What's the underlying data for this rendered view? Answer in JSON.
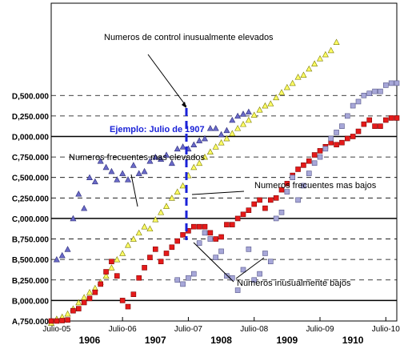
{
  "chart_data": {
    "type": "scatter",
    "x_unit": "months since Julio-05",
    "xlim": [
      -1,
      62
    ],
    "ylim": [
      0,
      15.5
    ],
    "y_ticks": [
      {
        "v": 0,
        "label": "A,750.000"
      },
      {
        "v": 1,
        "label": "B,000.000"
      },
      {
        "v": 2,
        "label": "B,250.000"
      },
      {
        "v": 3,
        "label": "B,500.000"
      },
      {
        "v": 4,
        "label": "B,750.000"
      },
      {
        "v": 5,
        "label": "C,000.000"
      },
      {
        "v": 6,
        "label": "C,250.000"
      },
      {
        "v": 7,
        "label": "C,500.000"
      },
      {
        "v": 8,
        "label": "C,750.000"
      },
      {
        "v": 9,
        "label": "D,000.000"
      },
      {
        "v": 10,
        "label": "D,250.000"
      },
      {
        "v": 11,
        "label": "D,500.000"
      }
    ],
    "solid_grid": [
      1,
      5,
      9
    ],
    "x_ticks": [
      {
        "v": 0,
        "label": "Julio-05"
      },
      {
        "v": 12,
        "label": "Julio-06"
      },
      {
        "v": 24,
        "label": "Julio-07"
      },
      {
        "v": 36,
        "label": "Julio-08"
      },
      {
        "v": 48,
        "label": "Julio-09"
      },
      {
        "v": 60,
        "label": "Julio-10"
      }
    ],
    "year_labels": [
      {
        "v": 6,
        "label": "1906"
      },
      {
        "v": 18,
        "label": "1907"
      },
      {
        "v": 30,
        "label": "1908"
      },
      {
        "v": 42,
        "label": "1909"
      },
      {
        "v": 54,
        "label": "1910"
      }
    ],
    "series": [
      {
        "marker": "triangle",
        "color": "#ffff66",
        "stroke": "#7a7a00",
        "points": [
          [
            -1,
            -0.1
          ],
          [
            0,
            0.1
          ],
          [
            1,
            0.2
          ],
          [
            2,
            0.35
          ],
          [
            3,
            0.6
          ],
          [
            4,
            0.9
          ],
          [
            5,
            1.15
          ],
          [
            6,
            1.4
          ],
          [
            7,
            1.6
          ],
          [
            8,
            1.9
          ],
          [
            9,
            2.2
          ],
          [
            10,
            2.6
          ],
          [
            11,
            3.0
          ],
          [
            12,
            3.3
          ],
          [
            13,
            3.7
          ],
          [
            14,
            4.0
          ],
          [
            15,
            4.3
          ],
          [
            16,
            4.6
          ],
          [
            17,
            4.5
          ],
          [
            18,
            4.95
          ],
          [
            19,
            5.3
          ],
          [
            20,
            5.6
          ],
          [
            21,
            6.0
          ],
          [
            22,
            6.3
          ],
          [
            23,
            6.6
          ],
          [
            24,
            7.1
          ],
          [
            25,
            7.5
          ],
          [
            26,
            7.7
          ],
          [
            27,
            8.0
          ],
          [
            28,
            8.25
          ],
          [
            29,
            8.5
          ],
          [
            30,
            8.7
          ],
          [
            31,
            8.9
          ],
          [
            32,
            9.15
          ],
          [
            33,
            9.4
          ],
          [
            34,
            9.6
          ],
          [
            35,
            9.8
          ],
          [
            36,
            10.05
          ],
          [
            37,
            10.3
          ],
          [
            38,
            10.5
          ],
          [
            39,
            10.6
          ],
          [
            40,
            10.9
          ],
          [
            41,
            11.15
          ],
          [
            42,
            11.4
          ],
          [
            43,
            11.6
          ],
          [
            44,
            11.9
          ],
          [
            45,
            12.0
          ],
          [
            46,
            12.3
          ],
          [
            47,
            12.55
          ],
          [
            48,
            12.8
          ],
          [
            49,
            13.0
          ],
          [
            50,
            13.2
          ],
          [
            51,
            13.6
          ]
        ]
      },
      {
        "marker": "square",
        "color": "#e51a1a",
        "stroke": "#800000",
        "points": [
          [
            -1,
            0.0
          ],
          [
            0,
            0.0
          ],
          [
            1,
            0.02
          ],
          [
            2,
            0.05
          ],
          [
            3,
            0.5
          ],
          [
            4,
            0.6
          ],
          [
            5,
            0.9
          ],
          [
            6,
            1.1
          ],
          [
            7,
            1.4
          ],
          [
            8,
            1.8
          ],
          [
            9,
            2.4
          ],
          [
            10,
            2.9
          ],
          [
            11,
            2.2
          ],
          [
            12,
            1.0
          ],
          [
            13,
            0.7
          ],
          [
            14,
            1.3
          ],
          [
            15,
            2.1
          ],
          [
            16,
            2.6
          ],
          [
            17,
            3.1
          ],
          [
            18,
            3.5
          ],
          [
            19,
            2.9
          ],
          [
            20,
            3.3
          ],
          [
            21,
            3.6
          ],
          [
            22,
            3.9
          ],
          [
            23,
            4.2
          ],
          [
            24,
            4.4
          ],
          [
            25,
            4.6
          ],
          [
            26,
            4.6
          ],
          [
            27,
            4.6
          ],
          [
            28,
            4.3
          ],
          [
            29,
            4.0
          ],
          [
            30,
            4.1
          ],
          [
            31,
            4.7
          ],
          [
            32,
            4.7
          ],
          [
            33,
            5.0
          ],
          [
            34,
            5.2
          ],
          [
            35,
            5.4
          ],
          [
            36,
            5.7
          ],
          [
            37,
            5.9
          ],
          [
            38,
            5.5
          ],
          [
            39,
            5.9
          ],
          [
            40,
            6.0
          ],
          [
            41,
            6.4
          ],
          [
            42,
            6.7
          ],
          [
            43,
            7.1
          ],
          [
            44,
            7.4
          ],
          [
            45,
            7.6
          ],
          [
            46,
            7.8
          ],
          [
            47,
            8.1
          ],
          [
            48,
            8.3
          ],
          [
            49,
            8.5
          ],
          [
            50,
            8.7
          ],
          [
            51,
            8.6
          ],
          [
            52,
            8.7
          ],
          [
            53,
            8.9
          ],
          [
            54,
            9.0
          ],
          [
            55,
            9.25
          ],
          [
            56,
            9.6
          ],
          [
            57,
            9.8
          ],
          [
            58,
            9.5
          ],
          [
            59,
            9.5
          ],
          [
            60,
            9.8
          ],
          [
            61,
            9.9
          ],
          [
            62,
            9.9
          ]
        ]
      },
      {
        "marker": "square",
        "color": "#a7a7d8",
        "stroke": "#555588",
        "points": [
          [
            22,
            2.0
          ],
          [
            23,
            1.8
          ],
          [
            24,
            2.1
          ],
          [
            25,
            2.3
          ],
          [
            26,
            3.8
          ],
          [
            27,
            4.3
          ],
          [
            28,
            4.0
          ],
          [
            29,
            3.1
          ],
          [
            30,
            3.4
          ],
          [
            31,
            2.2
          ],
          [
            32,
            2.1
          ],
          [
            33,
            1.5
          ],
          [
            34,
            2.5
          ],
          [
            35,
            3.5
          ],
          [
            36,
            2.0
          ],
          [
            37,
            2.3
          ],
          [
            38,
            3.3
          ],
          [
            39,
            2.9
          ],
          [
            40,
            5.0
          ],
          [
            41,
            5.3
          ],
          [
            42,
            6.3
          ],
          [
            43,
            7.0
          ],
          [
            44,
            5.9
          ],
          [
            45,
            6.6
          ],
          [
            46,
            7.2
          ],
          [
            47,
            7.7
          ],
          [
            48,
            8.0
          ],
          [
            49,
            8.4
          ],
          [
            50,
            8.9
          ],
          [
            51,
            9.2
          ],
          [
            52,
            9.5
          ],
          [
            53,
            10.0
          ],
          [
            54,
            10.5
          ],
          [
            55,
            10.7
          ],
          [
            56,
            11.0
          ],
          [
            57,
            11.1
          ],
          [
            58,
            11.2
          ],
          [
            59,
            11.2
          ],
          [
            60,
            11.5
          ],
          [
            61,
            11.6
          ],
          [
            62,
            11.6
          ]
        ]
      },
      {
        "marker": "triangle",
        "color": "#6a6ac8",
        "stroke": "#2a2a78",
        "points": [
          [
            0,
            3.0
          ],
          [
            1,
            3.2
          ],
          [
            2,
            3.5
          ],
          [
            3,
            5.0
          ],
          [
            4,
            6.2
          ],
          [
            5,
            5.5
          ],
          [
            6,
            7.0
          ],
          [
            7,
            6.8
          ],
          [
            8,
            7.8
          ],
          [
            9,
            7.5
          ],
          [
            10,
            7.3
          ],
          [
            11,
            6.9
          ],
          [
            12,
            7.2
          ],
          [
            13,
            6.9
          ],
          [
            14,
            7.6
          ],
          [
            15,
            7.2
          ],
          [
            16,
            7.3
          ],
          [
            17,
            7.8
          ],
          [
            18,
            8.0
          ],
          [
            19,
            7.9
          ],
          [
            20,
            8.1
          ],
          [
            21,
            7.7
          ],
          [
            22,
            8.4
          ],
          [
            23,
            8.5
          ],
          [
            24,
            8.4
          ],
          [
            25,
            8.6
          ],
          [
            26,
            8.8
          ],
          [
            27,
            8.9
          ],
          [
            28,
            9.4
          ],
          [
            29,
            9.4
          ],
          [
            30,
            9.1
          ],
          [
            31,
            9.3
          ],
          [
            32,
            9.8
          ],
          [
            33,
            10.0
          ],
          [
            34,
            10.1
          ],
          [
            35,
            10.2
          ]
        ]
      }
    ],
    "annotations": [
      {
        "text": "Numeros de control inusualmente elevados"
      },
      {
        "text": "Ejemplo: Julio de 1907"
      },
      {
        "text": "Numeros frecuentes mas elevados"
      },
      {
        "text": "Numeros frecuentes mas bajos"
      },
      {
        "text": "Numeros inusualmente bajos"
      }
    ]
  }
}
